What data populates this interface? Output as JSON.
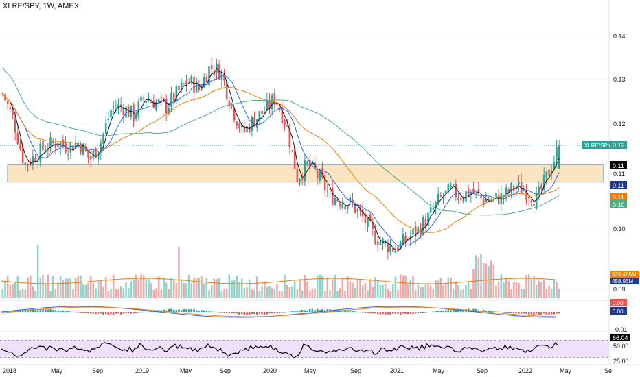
{
  "title": "XLRE/SPY, 1W, AMEX",
  "colors": {
    "up": "#26a69a",
    "down": "#ef5350",
    "ma_fast": "#131722",
    "ma_mid": "#2962ff",
    "ma_slow": "#f57c00",
    "ma_long": "#4caf84",
    "zone_fill": "#fbe4c0",
    "zone_border": "#4a90e2",
    "rsi_band": "#efe1fb",
    "rsi_line": "#000000",
    "axis_text": "#131722"
  },
  "chart_data": {
    "type": "candlestick",
    "symbol": "XLRE/SPY",
    "interval": "1W",
    "exchange": "AMEX",
    "price_axis_ticks": [
      "0.14",
      "0.13",
      "0.12",
      "0.11",
      "0.10",
      "0.09"
    ],
    "time_axis_ticks": [
      "2018",
      "May",
      "Sep",
      "2019",
      "May",
      "Sep",
      "2020",
      "May",
      "Sep",
      "2021",
      "May",
      "Sep",
      "2022",
      "May",
      "Se"
    ],
    "price_labels": [
      {
        "label": "XLRE/SPY",
        "value": "0.12",
        "color": "#26a69a"
      },
      {
        "value": "0.11",
        "color": "#000000"
      },
      {
        "value": "0.11",
        "color": "#1e3a8a"
      },
      {
        "value": "0.11",
        "color": "#f57c00"
      },
      {
        "value": "0.10",
        "color": "#4caf84"
      }
    ],
    "resistance_zone": [
      0.108,
      0.112
    ],
    "price_range": [
      0.088,
      0.146
    ],
    "close_series": [
      {
        "x": "2018-01",
        "y": 0.128
      },
      {
        "x": "2018-02",
        "y": 0.122
      },
      {
        "x": "2018-03",
        "y": 0.112
      },
      {
        "x": "2018-04",
        "y": 0.114
      },
      {
        "x": "2018-05",
        "y": 0.116
      },
      {
        "x": "2018-06",
        "y": 0.117
      },
      {
        "x": "2018-07",
        "y": 0.116
      },
      {
        "x": "2018-08",
        "y": 0.117
      },
      {
        "x": "2018-09",
        "y": 0.113
      },
      {
        "x": "2018-10",
        "y": 0.117
      },
      {
        "x": "2018-11",
        "y": 0.125
      },
      {
        "x": "2018-12",
        "y": 0.125
      },
      {
        "x": "2019-01",
        "y": 0.123
      },
      {
        "x": "2019-02",
        "y": 0.127
      },
      {
        "x": "2019-03",
        "y": 0.126
      },
      {
        "x": "2019-04",
        "y": 0.125
      },
      {
        "x": "2019-05",
        "y": 0.128
      },
      {
        "x": "2019-06",
        "y": 0.131
      },
      {
        "x": "2019-07",
        "y": 0.129
      },
      {
        "x": "2019-08",
        "y": 0.134
      },
      {
        "x": "2019-09",
        "y": 0.133
      },
      {
        "x": "2019-10",
        "y": 0.125
      },
      {
        "x": "2019-11",
        "y": 0.119
      },
      {
        "x": "2019-12",
        "y": 0.122
      },
      {
        "x": "2020-01",
        "y": 0.124
      },
      {
        "x": "2020-02",
        "y": 0.127
      },
      {
        "x": "2020-03",
        "y": 0.121
      },
      {
        "x": "2020-04",
        "y": 0.109
      },
      {
        "x": "2020-05",
        "y": 0.112
      },
      {
        "x": "2020-06",
        "y": 0.109
      },
      {
        "x": "2020-07",
        "y": 0.105
      },
      {
        "x": "2020-08",
        "y": 0.104
      },
      {
        "x": "2020-09",
        "y": 0.103
      },
      {
        "x": "2020-10",
        "y": 0.1
      },
      {
        "x": "2020-11",
        "y": 0.096
      },
      {
        "x": "2020-12",
        "y": 0.094
      },
      {
        "x": "2021-01",
        "y": 0.093
      },
      {
        "x": "2021-02",
        "y": 0.095
      },
      {
        "x": "2021-03",
        "y": 0.097
      },
      {
        "x": "2021-04",
        "y": 0.1
      },
      {
        "x": "2021-05",
        "y": 0.104
      },
      {
        "x": "2021-06",
        "y": 0.106
      },
      {
        "x": "2021-07",
        "y": 0.105
      },
      {
        "x": "2021-08",
        "y": 0.106
      },
      {
        "x": "2021-09",
        "y": 0.104
      },
      {
        "x": "2021-10",
        "y": 0.104
      },
      {
        "x": "2021-11",
        "y": 0.105
      },
      {
        "x": "2021-12",
        "y": 0.107
      },
      {
        "x": "2022-01",
        "y": 0.106
      },
      {
        "x": "2022-02",
        "y": 0.104
      },
      {
        "x": "2022-03",
        "y": 0.11
      },
      {
        "x": "2022-04",
        "y": 0.116
      }
    ],
    "volume": {
      "labels": [
        {
          "value": "529.495M",
          "color": "#f57c00"
        },
        {
          "value": "458.93M",
          "color": "#1e3a8a"
        }
      ]
    },
    "macd": {
      "labels": [
        {
          "value": "0.00",
          "color": "#ef5350"
        },
        {
          "value": "0.00",
          "color": "#1e3a8a"
        }
      ],
      "tick": "-0.01"
    },
    "rsi": {
      "value_label": "66.04",
      "ticks": [
        "50.00",
        "25.00"
      ],
      "band": [
        30,
        70
      ]
    }
  }
}
